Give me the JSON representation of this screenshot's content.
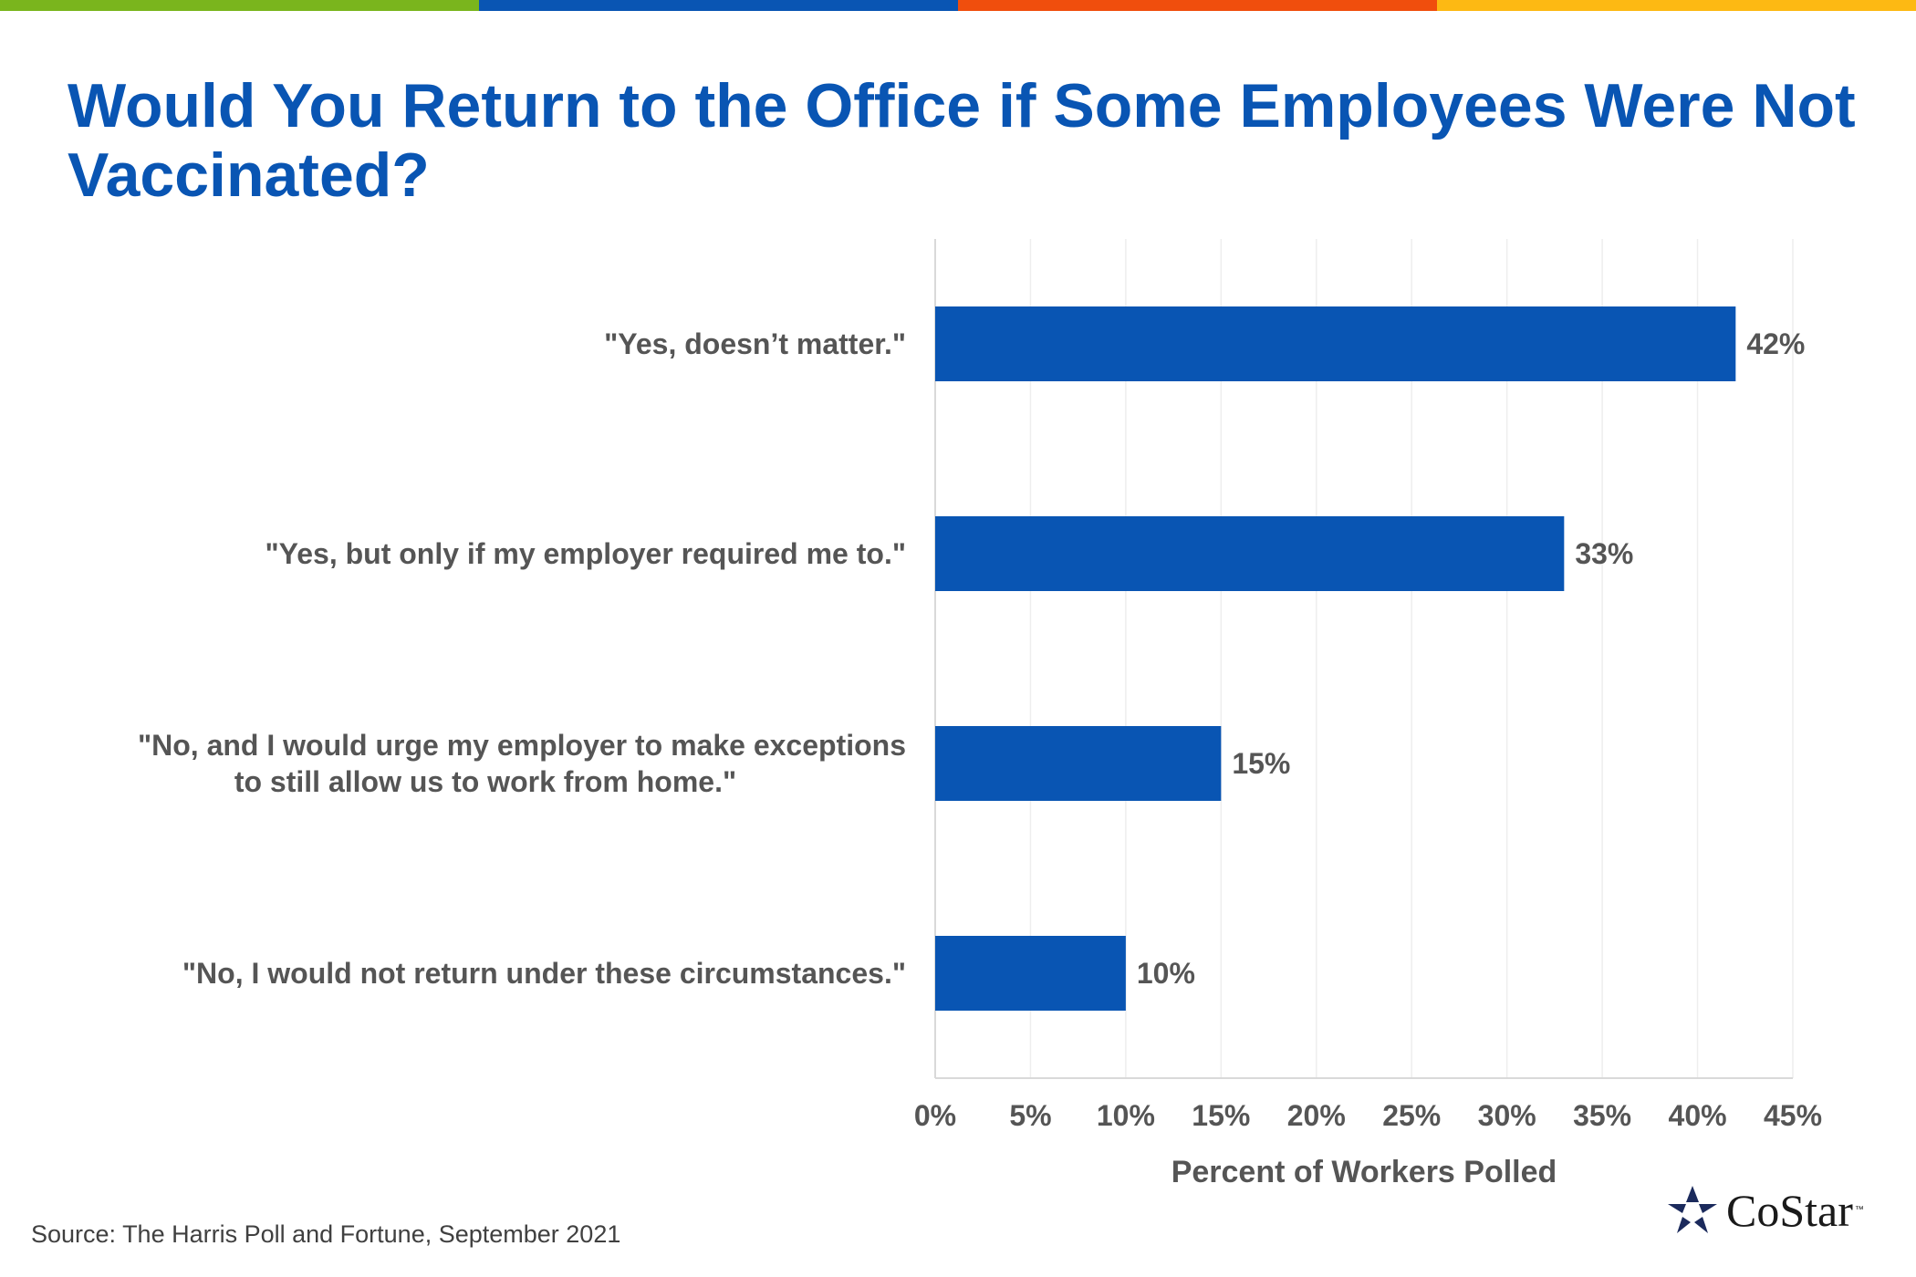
{
  "colors": {
    "stripes": [
      "#7ab51d",
      "#0955b3",
      "#f04e0d",
      "#fdb913"
    ],
    "title": "#0955b3",
    "bar": "#0955b3",
    "text": "#555555",
    "grid": "#eeeeee"
  },
  "title": "Would You Return to the Office if Some Employees Were Not Vaccinated?",
  "source": "Source: The Harris Poll and Fortune, September 2021",
  "logo": {
    "text": "CoStar",
    "tm": "™",
    "icon": "costar-star-icon"
  },
  "chart_data": {
    "type": "bar",
    "orientation": "horizontal",
    "categories": [
      [
        "\"Yes, doesn’t matter.\""
      ],
      [
        "\"Yes, but only if my employer required me to.\""
      ],
      [
        "\"No, and I would urge my employer to make exceptions",
        "to still allow us to work from home.\""
      ],
      [
        "\"No, I would not return under these circumstances.\""
      ]
    ],
    "values": [
      42,
      33,
      15,
      10
    ],
    "data_labels": [
      "42%",
      "33%",
      "15%",
      "10%"
    ],
    "xlabel": "Percent of Workers Polled",
    "ylabel": "",
    "xlim": [
      0,
      45
    ],
    "xticks": [
      0,
      5,
      10,
      15,
      20,
      25,
      30,
      35,
      40,
      45
    ],
    "xtick_labels": [
      "0%",
      "5%",
      "10%",
      "15%",
      "20%",
      "25%",
      "30%",
      "35%",
      "40%",
      "45%"
    ],
    "grid": true,
    "legend": "none"
  }
}
